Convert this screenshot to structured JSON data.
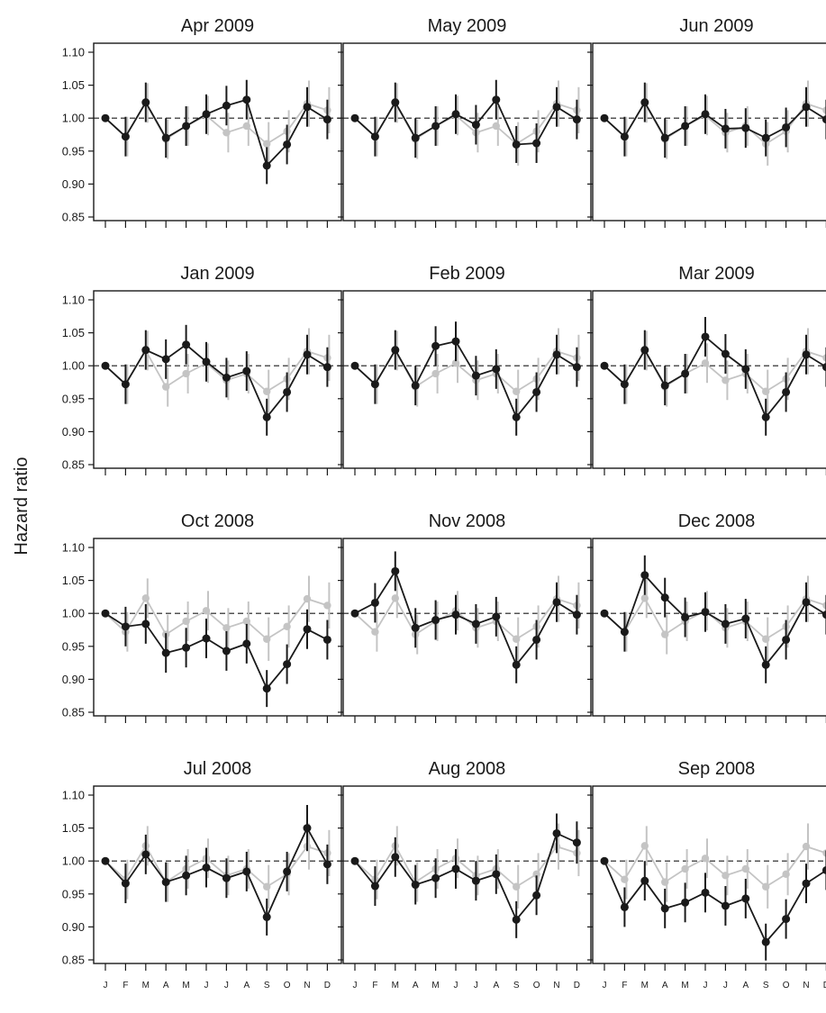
{
  "chart_data": {
    "type": "line",
    "ylabel": "Hazard ratio",
    "ylim": [
      0.85,
      1.1
    ],
    "yticks": [
      "0.85",
      "0.90",
      "0.95",
      "1.00",
      "1.05",
      "1.10"
    ],
    "months": [
      "J",
      "F",
      "M",
      "A",
      "M",
      "J",
      "J",
      "A",
      "S",
      "O",
      "N",
      "D"
    ],
    "reference_line": 1.0,
    "colors": {
      "dark": "#1a1a1a",
      "light": "#c4c4c4"
    },
    "light_series": {
      "values": [
        1.0,
        0.972,
        1.023,
        0.968,
        0.988,
        1.004,
        0.978,
        0.988,
        0.961,
        0.98,
        1.022,
        1.012
      ],
      "err": [
        0,
        0.03,
        0.03,
        0.03,
        0.03,
        0.03,
        0.03,
        0.03,
        0.033,
        0.032,
        0.035,
        0.035
      ]
    },
    "panels": [
      {
        "title": "Apr 2009",
        "dark": [
          1.0,
          0.972,
          1.024,
          0.97,
          0.988,
          1.006,
          1.019,
          1.028,
          0.928,
          0.96,
          1.017,
          0.998
        ],
        "err": [
          0,
          0.03,
          0.03,
          0.03,
          0.03,
          0.03,
          0.03,
          0.03,
          0.028,
          0.03,
          0.03,
          0.03
        ]
      },
      {
        "title": "May 2009",
        "dark": [
          1.0,
          0.972,
          1.024,
          0.97,
          0.988,
          1.006,
          0.99,
          1.028,
          0.96,
          0.962,
          1.017,
          0.998
        ],
        "err": [
          0,
          0.03,
          0.03,
          0.03,
          0.03,
          0.03,
          0.03,
          0.03,
          0.028,
          0.03,
          0.03,
          0.03
        ]
      },
      {
        "title": "Jun 2009",
        "dark": [
          1.0,
          0.972,
          1.024,
          0.97,
          0.988,
          1.006,
          0.984,
          0.985,
          0.97,
          0.986,
          1.017,
          0.998
        ],
        "err": [
          0,
          0.03,
          0.03,
          0.03,
          0.03,
          0.03,
          0.03,
          0.03,
          0.028,
          0.03,
          0.03,
          0.03
        ]
      },
      {
        "title": "Jan 2009",
        "dark": [
          1.0,
          0.972,
          1.024,
          1.01,
          1.032,
          1.006,
          0.982,
          0.992,
          0.922,
          0.96,
          1.017,
          0.998
        ],
        "err": [
          0,
          0.03,
          0.03,
          0.03,
          0.03,
          0.03,
          0.03,
          0.03,
          0.028,
          0.03,
          0.03,
          0.03
        ]
      },
      {
        "title": "Feb 2009",
        "dark": [
          1.0,
          0.972,
          1.024,
          0.97,
          1.03,
          1.037,
          0.985,
          0.995,
          0.922,
          0.96,
          1.017,
          0.998
        ],
        "err": [
          0,
          0.03,
          0.03,
          0.03,
          0.03,
          0.03,
          0.03,
          0.03,
          0.028,
          0.03,
          0.03,
          0.03
        ]
      },
      {
        "title": "Mar 2009",
        "dark": [
          1.0,
          0.972,
          1.024,
          0.97,
          0.988,
          1.044,
          1.018,
          0.995,
          0.922,
          0.96,
          1.017,
          0.998
        ],
        "err": [
          0,
          0.03,
          0.03,
          0.03,
          0.03,
          0.03,
          0.03,
          0.03,
          0.028,
          0.03,
          0.03,
          0.03
        ]
      },
      {
        "title": "Oct 2008",
        "dark": [
          1.0,
          0.98,
          0.984,
          0.94,
          0.948,
          0.962,
          0.943,
          0.954,
          0.886,
          0.923,
          0.976,
          0.96
        ],
        "err": [
          0,
          0.03,
          0.03,
          0.03,
          0.03,
          0.03,
          0.03,
          0.03,
          0.028,
          0.03,
          0.03,
          0.03
        ]
      },
      {
        "title": "Nov 2008",
        "dark": [
          1.0,
          1.016,
          1.064,
          0.978,
          0.99,
          0.998,
          0.984,
          0.995,
          0.922,
          0.96,
          1.017,
          0.998
        ],
        "err": [
          0,
          0.03,
          0.03,
          0.03,
          0.03,
          0.03,
          0.03,
          0.03,
          0.028,
          0.03,
          0.03,
          0.03
        ]
      },
      {
        "title": "Dec 2008",
        "dark": [
          1.0,
          0.972,
          1.058,
          1.024,
          0.994,
          1.002,
          0.984,
          0.992,
          0.922,
          0.96,
          1.017,
          0.998
        ],
        "err": [
          0,
          0.03,
          0.03,
          0.03,
          0.03,
          0.03,
          0.03,
          0.03,
          0.028,
          0.03,
          0.03,
          0.03
        ]
      },
      {
        "title": "Jul 2008",
        "dark": [
          1.0,
          0.966,
          1.01,
          0.968,
          0.978,
          0.99,
          0.974,
          0.984,
          0.915,
          0.984,
          1.05,
          0.995
        ],
        "err": [
          0,
          0.03,
          0.03,
          0.03,
          0.03,
          0.03,
          0.03,
          0.03,
          0.028,
          0.03,
          0.035,
          0.03
        ]
      },
      {
        "title": "Aug 2008",
        "dark": [
          1.0,
          0.962,
          1.006,
          0.964,
          0.974,
          0.988,
          0.97,
          0.98,
          0.911,
          0.948,
          1.042,
          1.028
        ],
        "err": [
          0,
          0.03,
          0.03,
          0.03,
          0.03,
          0.03,
          0.03,
          0.03,
          0.028,
          0.03,
          0.03,
          0.032
        ]
      },
      {
        "title": "Sep 2008",
        "dark": [
          1.0,
          0.93,
          0.97,
          0.928,
          0.937,
          0.952,
          0.932,
          0.943,
          0.877,
          0.912,
          0.966,
          0.986
        ],
        "err": [
          0,
          0.03,
          0.03,
          0.03,
          0.03,
          0.03,
          0.03,
          0.03,
          0.028,
          0.03,
          0.03,
          0.03
        ]
      }
    ]
  }
}
